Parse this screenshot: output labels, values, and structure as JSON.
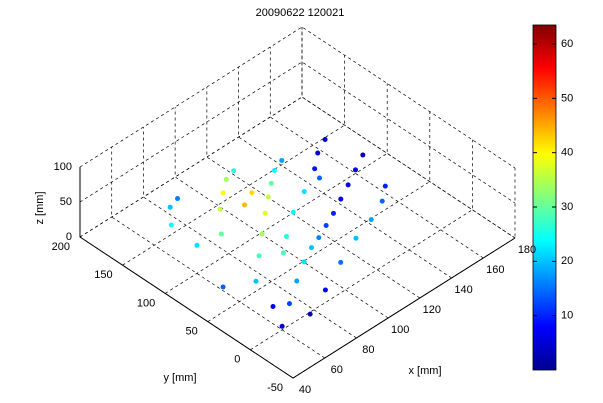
{
  "chart_data": {
    "type": "scatter3d",
    "title": "20090622 120021",
    "xlabel": "x [mm]",
    "ylabel": "y [mm]",
    "zlabel": "z [mm]",
    "xlim": [
      40,
      180
    ],
    "ylim": [
      -50,
      200
    ],
    "zlim": [
      0,
      100
    ],
    "xticks": [
      40,
      60,
      80,
      100,
      120,
      140,
      160,
      180
    ],
    "yticks": [
      -50,
      0,
      50,
      100,
      150,
      200
    ],
    "zticks": [
      0,
      50,
      100
    ],
    "grid": true,
    "colormap": "jet",
    "clim": [
      0,
      63.5
    ],
    "cticks": [
      10,
      20,
      30,
      40,
      50,
      60
    ],
    "series": [
      {
        "x": [
          60,
          70,
          80,
          90,
          100,
          110,
          120,
          130,
          140,
          150,
          160,
          170,
          65,
          75,
          85,
          95,
          105,
          115,
          125,
          135,
          70,
          80,
          90,
          100,
          110,
          60,
          60,
          70,
          80,
          55,
          65,
          75,
          90,
          105,
          120,
          135,
          150,
          160,
          145,
          155,
          165,
          95,
          110,
          125,
          140,
          85,
          100,
          90
        ],
        "y": [
          0,
          10,
          20,
          30,
          40,
          50,
          60,
          70,
          80,
          90,
          100,
          110,
          40,
          55,
          70,
          85,
          100,
          115,
          130,
          140,
          90,
          110,
          125,
          140,
          150,
          100,
          130,
          150,
          160,
          60,
          20,
          -5,
          5,
          15,
          25,
          35,
          50,
          65,
          120,
          135,
          145,
          60,
          80,
          95,
          105,
          45,
          110,
          100
        ],
        "z": [
          5,
          15,
          25,
          30,
          28,
          20,
          15,
          10,
          8,
          6,
          5,
          4,
          30,
          40,
          45,
          48,
          45,
          38,
          30,
          22,
          50,
          55,
          52,
          45,
          35,
          40,
          45,
          40,
          30,
          20,
          10,
          5,
          10,
          20,
          25,
          22,
          15,
          10,
          12,
          8,
          5,
          35,
          32,
          28,
          18,
          38,
          50,
          55
        ],
        "c": [
          5,
          12,
          18,
          22,
          20,
          16,
          12,
          10,
          8,
          7,
          6,
          5,
          20,
          28,
          34,
          38,
          36,
          30,
          24,
          18,
          30,
          36,
          40,
          34,
          26,
          22,
          24,
          20,
          16,
          14,
          8,
          4,
          8,
          15,
          20,
          18,
          14,
          10,
          9,
          6,
          5,
          26,
          24,
          22,
          14,
          28,
          42,
          44
        ]
      }
    ]
  }
}
